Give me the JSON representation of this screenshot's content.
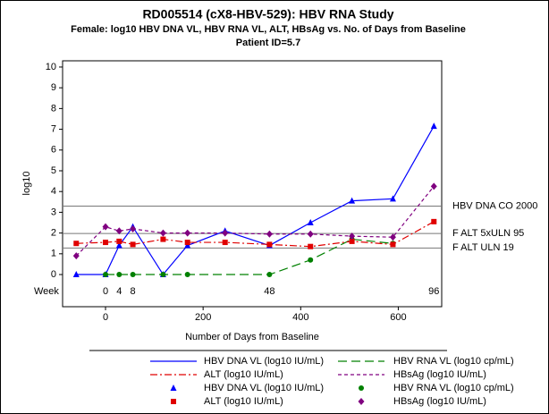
{
  "chart_data": {
    "type": "line",
    "title": "RD005514 (cX8-HBV-529): HBV RNA Study",
    "subtitle": "Female: log10 HBV DNA VL, HBV RNA VL, ALT, HBsAg vs. No. of Days from Baseline",
    "subtitle2": "Patient ID=5.7",
    "x_label": "Number of Days from Baseline",
    "y_label": "log10",
    "xlim": [
      -88,
      689
    ],
    "xticks": [
      0,
      200,
      400,
      600
    ],
    "ylim": [
      -1.55,
      10.3
    ],
    "yticks": [
      0,
      1,
      2,
      3,
      4,
      5,
      6,
      7,
      8,
      9,
      10
    ],
    "series": [
      {
        "name": "HBV DNA VL (log10 IU/mL)",
        "color": "#0000ff",
        "marker": "triangle",
        "dash": "none",
        "x": [
          -60,
          0,
          28,
          56,
          118,
          168,
          245,
          336,
          420,
          505,
          589,
          673
        ],
        "values": [
          0,
          0,
          1.4,
          2.3,
          0,
          1.4,
          2.1,
          1.4,
          2.5,
          3.55,
          3.65,
          7.15
        ]
      },
      {
        "name": "HBV RNA VL (log10 cp/mL)",
        "color": "#008000",
        "marker": "circle",
        "dash": "10,5",
        "x": [
          0,
          28,
          56,
          118,
          168,
          336,
          420,
          505,
          589
        ],
        "values": [
          0,
          0,
          0,
          0,
          0,
          0,
          0.7,
          1.7,
          1.5
        ]
      },
      {
        "name": "ALT (log10 IU/mL)",
        "color": "#e00000",
        "marker": "square",
        "dash": "8,3,2,3",
        "x": [
          -60,
          0,
          28,
          56,
          118,
          168,
          245,
          336,
          420,
          505,
          589,
          673
        ],
        "values": [
          1.5,
          1.55,
          1.6,
          1.45,
          1.7,
          1.55,
          1.55,
          1.45,
          1.35,
          1.6,
          1.45,
          2.55
        ]
      },
      {
        "name": "HBsAg (log10 IU/mL)",
        "color": "#800080",
        "marker": "diamond",
        "dash": "4,3",
        "x": [
          -60,
          0,
          28,
          56,
          118,
          168,
          245,
          336,
          420,
          505,
          589,
          673
        ],
        "values": [
          0.9,
          2.3,
          2.1,
          2.2,
          2.0,
          2.0,
          2.0,
          1.95,
          1.95,
          1.85,
          1.8,
          4.25
        ]
      }
    ],
    "reference_lines": [
      {
        "label": "HBV DNA CO 2000",
        "value": 3.3
      },
      {
        "label": "F ALT 5xULN 95",
        "value": 1.98
      },
      {
        "label": "F ALT ULN 19",
        "value": 1.28
      }
    ],
    "week_row": {
      "label": "Week",
      "days": [
        0,
        28,
        56,
        336,
        673
      ],
      "labels": [
        "0",
        "4",
        "8",
        "48",
        "96"
      ]
    }
  }
}
